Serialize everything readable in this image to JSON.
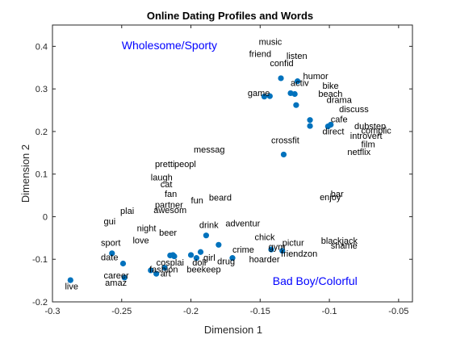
{
  "chart_data": {
    "type": "scatter",
    "title": "Online Dating Profiles and Words",
    "xlabel": "Dimension 1",
    "ylabel": "Dimension 2",
    "xlim": [
      -0.3,
      -0.04
    ],
    "ylim": [
      -0.2,
      0.45
    ],
    "xticks": [
      -0.3,
      -0.25,
      -0.2,
      -0.15,
      -0.1,
      -0.05
    ],
    "xtick_labels": [
      "-0.3",
      "-0.25",
      "-0.2",
      "-0.15",
      "-0.1",
      "-0.05"
    ],
    "yticks": [
      -0.2,
      -0.1,
      0,
      0.1,
      0.2,
      0.3,
      0.4
    ],
    "ytick_labels": [
      "-0.2",
      "-0.1",
      "0",
      "0.1",
      "0.2",
      "0.3",
      "0.4"
    ],
    "grid": false,
    "box": true,
    "point_color": "#0072BD",
    "annotation_color": "#0000FF",
    "points": [
      {
        "x": -0.287,
        "y": -0.149
      },
      {
        "x": -0.257,
        "y": -0.086
      },
      {
        "x": -0.249,
        "y": -0.11
      },
      {
        "x": -0.248,
        "y": -0.143
      },
      {
        "x": -0.229,
        "y": -0.126
      },
      {
        "x": -0.225,
        "y": -0.134
      },
      {
        "x": -0.219,
        "y": -0.12
      },
      {
        "x": -0.215,
        "y": -0.091
      },
      {
        "x": -0.212,
        "y": -0.093
      },
      {
        "x": -0.213,
        "y": -0.09
      },
      {
        "x": -0.2,
        "y": -0.09
      },
      {
        "x": -0.196,
        "y": -0.097
      },
      {
        "x": -0.193,
        "y": -0.083
      },
      {
        "x": -0.189,
        "y": -0.044
      },
      {
        "x": -0.18,
        "y": -0.066
      },
      {
        "x": -0.17,
        "y": -0.097
      },
      {
        "x": -0.147,
        "y": 0.282
      },
      {
        "x": -0.143,
        "y": 0.283
      },
      {
        "x": -0.135,
        "y": 0.325
      },
      {
        "x": -0.133,
        "y": 0.146
      },
      {
        "x": -0.128,
        "y": 0.29
      },
      {
        "x": -0.125,
        "y": 0.288
      },
      {
        "x": -0.124,
        "y": 0.262
      },
      {
        "x": -0.123,
        "y": 0.318
      },
      {
        "x": -0.114,
        "y": 0.227
      },
      {
        "x": -0.114,
        "y": 0.213
      },
      {
        "x": -0.101,
        "y": 0.212
      },
      {
        "x": -0.099,
        "y": 0.216
      },
      {
        "x": -0.142,
        "y": -0.077
      },
      {
        "x": -0.134,
        "y": -0.08
      }
    ],
    "words": [
      {
        "text": "music",
        "x": -0.151,
        "y": 0.404
      },
      {
        "text": "friend",
        "x": -0.158,
        "y": 0.375
      },
      {
        "text": "listen",
        "x": -0.131,
        "y": 0.37
      },
      {
        "text": "confid",
        "x": -0.143,
        "y": 0.353
      },
      {
        "text": "humor",
        "x": -0.119,
        "y": 0.323
      },
      {
        "text": "activ",
        "x": -0.128,
        "y": 0.307
      },
      {
        "text": "bike",
        "x": -0.105,
        "y": 0.3
      },
      {
        "text": "game",
        "x": -0.159,
        "y": 0.283
      },
      {
        "text": "beach",
        "x": -0.108,
        "y": 0.281
      },
      {
        "text": "drama",
        "x": -0.102,
        "y": 0.267
      },
      {
        "text": "discuss",
        "x": -0.093,
        "y": 0.245
      },
      {
        "text": "cafe",
        "x": -0.099,
        "y": 0.222
      },
      {
        "text": "dubstep",
        "x": -0.082,
        "y": 0.206
      },
      {
        "text": "direct",
        "x": -0.105,
        "y": 0.193
      },
      {
        "text": "complic",
        "x": -0.077,
        "y": 0.195
      },
      {
        "text": "introvert",
        "x": -0.085,
        "y": 0.183
      },
      {
        "text": "film",
        "x": -0.077,
        "y": 0.163
      },
      {
        "text": "crossfit",
        "x": -0.142,
        "y": 0.172
      },
      {
        "text": "netflix",
        "x": -0.087,
        "y": 0.145
      },
      {
        "text": "messag",
        "x": -0.198,
        "y": 0.151
      },
      {
        "text": "pretti",
        "x": -0.226,
        "y": 0.116
      },
      {
        "text": "peopl",
        "x": -0.212,
        "y": 0.116
      },
      {
        "text": "laugh",
        "x": -0.229,
        "y": 0.085
      },
      {
        "text": "cat",
        "x": -0.222,
        "y": 0.069
      },
      {
        "text": "fan",
        "x": -0.219,
        "y": 0.046
      },
      {
        "text": "bar",
        "x": -0.099,
        "y": 0.046
      },
      {
        "text": "fun",
        "x": -0.2,
        "y": 0.031
      },
      {
        "text": "beard",
        "x": -0.187,
        "y": 0.038
      },
      {
        "text": "enjoy",
        "x": -0.107,
        "y": 0.039
      },
      {
        "text": "plai",
        "x": -0.251,
        "y": 0.007
      },
      {
        "text": "partner",
        "x": -0.226,
        "y": 0.021
      },
      {
        "text": "awesom",
        "x": -0.227,
        "y": 0.008
      },
      {
        "text": "gui",
        "x": -0.263,
        "y": -0.018
      },
      {
        "text": "drink",
        "x": -0.194,
        "y": -0.027
      },
      {
        "text": "adventur",
        "x": -0.175,
        "y": -0.023
      },
      {
        "text": "night",
        "x": -0.239,
        "y": -0.034
      },
      {
        "text": "beer",
        "x": -0.223,
        "y": -0.045
      },
      {
        "text": "chick",
        "x": -0.154,
        "y": -0.055
      },
      {
        "text": "love",
        "x": -0.242,
        "y": -0.063
      },
      {
        "text": "sport",
        "x": -0.265,
        "y": -0.068
      },
      {
        "text": "pictur",
        "x": -0.134,
        "y": -0.068
      },
      {
        "text": "blackjack",
        "x": -0.106,
        "y": -0.064
      },
      {
        "text": "crime",
        "x": -0.17,
        "y": -0.084
      },
      {
        "text": "gym",
        "x": -0.144,
        "y": -0.078
      },
      {
        "text": "shame",
        "x": -0.099,
        "y": -0.075
      },
      {
        "text": "friendzon",
        "x": -0.135,
        "y": -0.094
      },
      {
        "text": "date",
        "x": -0.265,
        "y": -0.102
      },
      {
        "text": "girl",
        "x": -0.191,
        "y": -0.103
      },
      {
        "text": "hoarder",
        "x": -0.158,
        "y": -0.107
      },
      {
        "text": "cosplai",
        "x": -0.225,
        "y": -0.115
      },
      {
        "text": "doll",
        "x": -0.199,
        "y": -0.115
      },
      {
        "text": "drug",
        "x": -0.181,
        "y": -0.112
      },
      {
        "text": "fashion",
        "x": -0.23,
        "y": -0.131
      },
      {
        "text": "beekeep",
        "x": -0.203,
        "y": -0.131
      },
      {
        "text": "career",
        "x": -0.263,
        "y": -0.145
      },
      {
        "text": "art",
        "x": -0.222,
        "y": -0.14
      },
      {
        "text": "amaz",
        "x": -0.262,
        "y": -0.162
      },
      {
        "text": "live",
        "x": -0.291,
        "y": -0.171
      }
    ],
    "annotations": [
      {
        "text": "Wholesome/Sporty",
        "x": -0.25,
        "y": 0.393
      },
      {
        "text": "Bad Boy/Colorful",
        "x": -0.141,
        "y": -0.16
      }
    ]
  }
}
